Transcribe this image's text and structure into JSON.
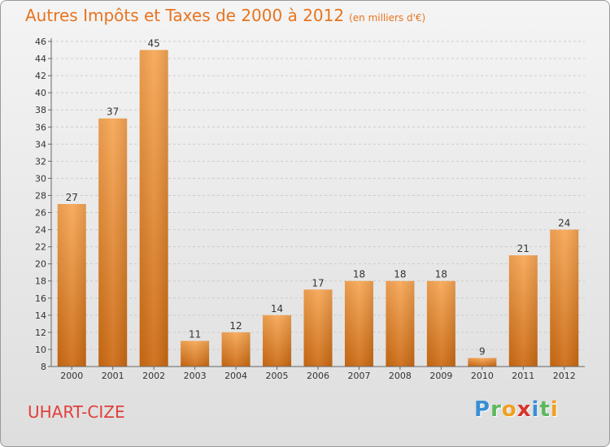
{
  "title": {
    "main": "Autres Impôts et Taxes de 2000 à 2012",
    "unit": "(en milliers d'€)"
  },
  "commune": "UHART-CIZE",
  "logo": {
    "text": "Proxiti",
    "letters": [
      {
        "ch": "P",
        "color": "#3a8fd4"
      },
      {
        "ch": "r",
        "color": "#5cb85c"
      },
      {
        "ch": "o",
        "color": "#f0a020"
      },
      {
        "ch": "x",
        "color": "#d9342b"
      },
      {
        "ch": "i",
        "color": "#3a8fd4"
      },
      {
        "ch": "t",
        "color": "#5cb85c"
      },
      {
        "ch": "i",
        "color": "#f0a020"
      }
    ]
  },
  "colors": {
    "bar_top": "#f7a654",
    "bar_bottom": "#cc6a12",
    "title": "#e8741e",
    "commune": "#e0403c",
    "grid": "#cccccc"
  },
  "chart_data": {
    "type": "bar",
    "categories": [
      "2000",
      "2001",
      "2002",
      "2003",
      "2004",
      "2005",
      "2006",
      "2007",
      "2008",
      "2009",
      "2010",
      "2011",
      "2012"
    ],
    "values": [
      27,
      37,
      45,
      11,
      12,
      14,
      17,
      18,
      18,
      18,
      9,
      21,
      24
    ],
    "title": "Autres Impôts et Taxes de 2000 à 2012",
    "subtitle": "(en milliers d'€)",
    "xlabel": "",
    "ylabel": "",
    "ylim": [
      8,
      46
    ],
    "yticks": [
      8,
      10,
      12,
      14,
      16,
      18,
      20,
      22,
      24,
      26,
      28,
      30,
      32,
      34,
      36,
      38,
      40,
      42,
      44,
      46
    ],
    "grid": "horizontal dashed",
    "legend": "none"
  }
}
